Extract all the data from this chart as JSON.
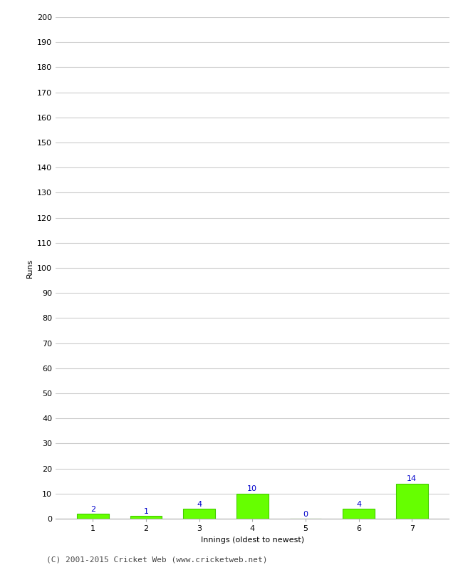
{
  "innings": [
    1,
    2,
    3,
    4,
    5,
    6,
    7
  ],
  "runs": [
    2,
    1,
    4,
    10,
    0,
    4,
    14
  ],
  "bar_color": "#66ff00",
  "bar_edge_color": "#44cc00",
  "label_color": "#0000cc",
  "xlabel": "Innings (oldest to newest)",
  "ylabel": "Runs",
  "ylim": [
    0,
    200
  ],
  "yticks": [
    0,
    10,
    20,
    30,
    40,
    50,
    60,
    70,
    80,
    90,
    100,
    110,
    120,
    130,
    140,
    150,
    160,
    170,
    180,
    190,
    200
  ],
  "footer": "(C) 2001-2015 Cricket Web (www.cricketweb.net)",
  "background_color": "#ffffff",
  "grid_color": "#cccccc",
  "label_fontsize": 8,
  "axis_fontsize": 8,
  "footer_fontsize": 8
}
